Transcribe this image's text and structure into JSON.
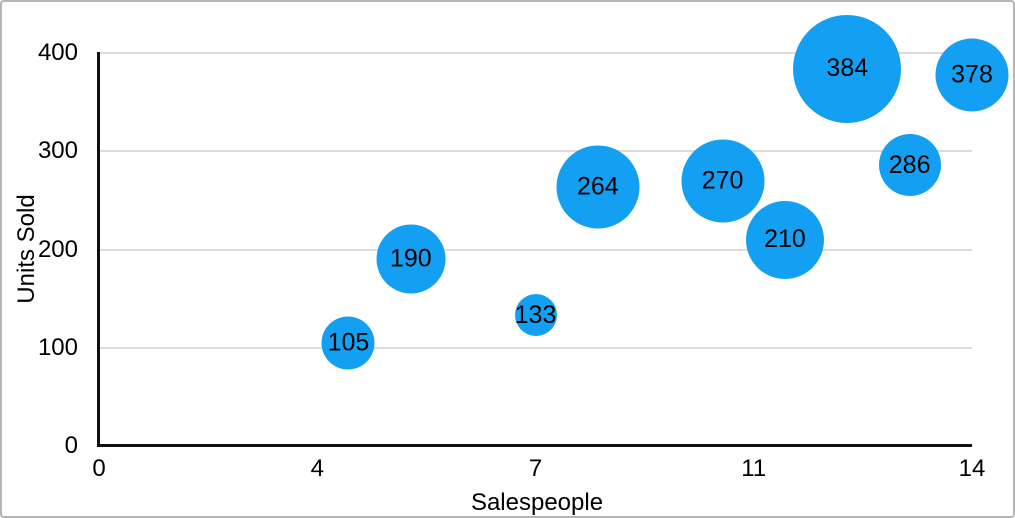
{
  "frame": {
    "background": "#ffffff",
    "border_color": "#b5b5b5"
  },
  "chart_data": {
    "type": "scatter",
    "variant": "bubble",
    "title": "",
    "xlabel": "Salespeople",
    "ylabel": "Units Sold",
    "xlim": [
      0,
      14
    ],
    "ylim": [
      0,
      400
    ],
    "grid": "horizontal",
    "legend": "none",
    "bubble_color": "#14a0f2",
    "label_color": "#000000",
    "gridline_color": "#dcdcdc",
    "axis_color": "#111111",
    "x_tick_labels": [
      "0",
      "4",
      "7",
      "11",
      "14"
    ],
    "y_tick_labels": [
      "0",
      "100",
      "200",
      "300",
      "400"
    ],
    "y_tick_values": [
      0,
      100,
      200,
      300,
      400
    ],
    "points": [
      {
        "x": 4,
        "y": 105,
        "label": "105",
        "radius_px": 26.5
      },
      {
        "x": 5,
        "y": 190,
        "label": "190",
        "radius_px": 34.5
      },
      {
        "x": 7,
        "y": 133,
        "label": "133",
        "radius_px": 21
      },
      {
        "x": 8,
        "y": 264,
        "label": "264",
        "radius_px": 41.5
      },
      {
        "x": 10,
        "y": 270,
        "label": "270",
        "radius_px": 41.5
      },
      {
        "x": 11,
        "y": 210,
        "label": "210",
        "radius_px": 39
      },
      {
        "x": 12,
        "y": 384,
        "label": "384",
        "radius_px": 54
      },
      {
        "x": 13,
        "y": 286,
        "label": "286",
        "radius_px": 31
      },
      {
        "x": 14,
        "y": 378,
        "label": "378",
        "radius_px": 36.5
      }
    ]
  }
}
